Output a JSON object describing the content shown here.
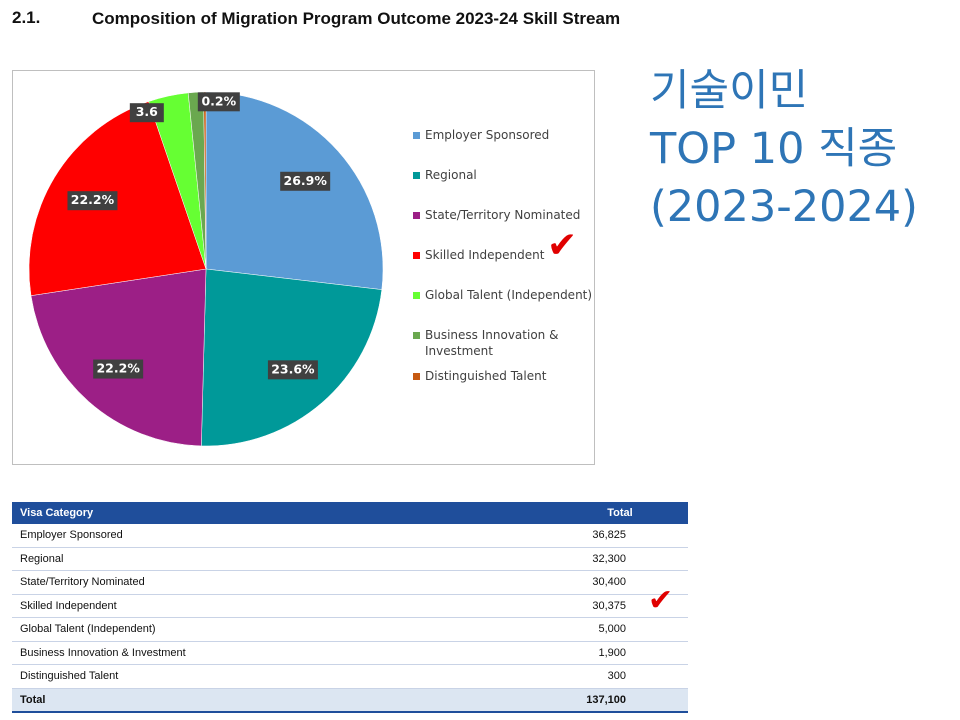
{
  "heading": {
    "number": "2.1.",
    "title": "Composition of Migration Program Outcome 2023-24 Skill Stream"
  },
  "chart_data": {
    "type": "pie",
    "title": "Composition of Migration Program Outcome 2023-24 Skill Stream",
    "categories": [
      "Employer Sponsored",
      "Regional",
      "State/Territory Nominated",
      "Skilled Independent",
      "Global Talent (Independent)",
      "Business Innovation & Investment",
      "Distinguished Talent"
    ],
    "values": [
      36825,
      32300,
      30400,
      30375,
      5000,
      1900,
      300
    ],
    "percent_labels": [
      "26.9%",
      "23.6%",
      "22.2%",
      "22.2%",
      "3.6",
      "",
      "0.2%"
    ],
    "colors": [
      "#5b9bd5",
      "#009999",
      "#9c1f86",
      "#ff0000",
      "#66ff33",
      "#6aa84f",
      "#c65911"
    ],
    "legend_position": "right"
  },
  "annotation": {
    "line1": "기술이민",
    "line2": "TOP 10 직종",
    "line3": "(2023-2024)",
    "color": "#2e75b6",
    "check_mark": "✔"
  },
  "table": {
    "headers": [
      "Visa Category",
      "Total"
    ],
    "rows": [
      {
        "category": "Employer Sponsored",
        "total": "36,825"
      },
      {
        "category": "Regional",
        "total": "32,300"
      },
      {
        "category": "State/Territory Nominated",
        "total": "30,400"
      },
      {
        "category": "Skilled Independent",
        "total": "30,375"
      },
      {
        "category": "Global Talent (Independent)",
        "total": "5,000"
      },
      {
        "category": "Business Innovation & Investment",
        "total": "1,900"
      },
      {
        "category": "Distinguished Talent",
        "total": "300"
      }
    ],
    "total_row": {
      "category": "Total",
      "total": "137,100"
    },
    "header_color": "#1f4e9b"
  }
}
